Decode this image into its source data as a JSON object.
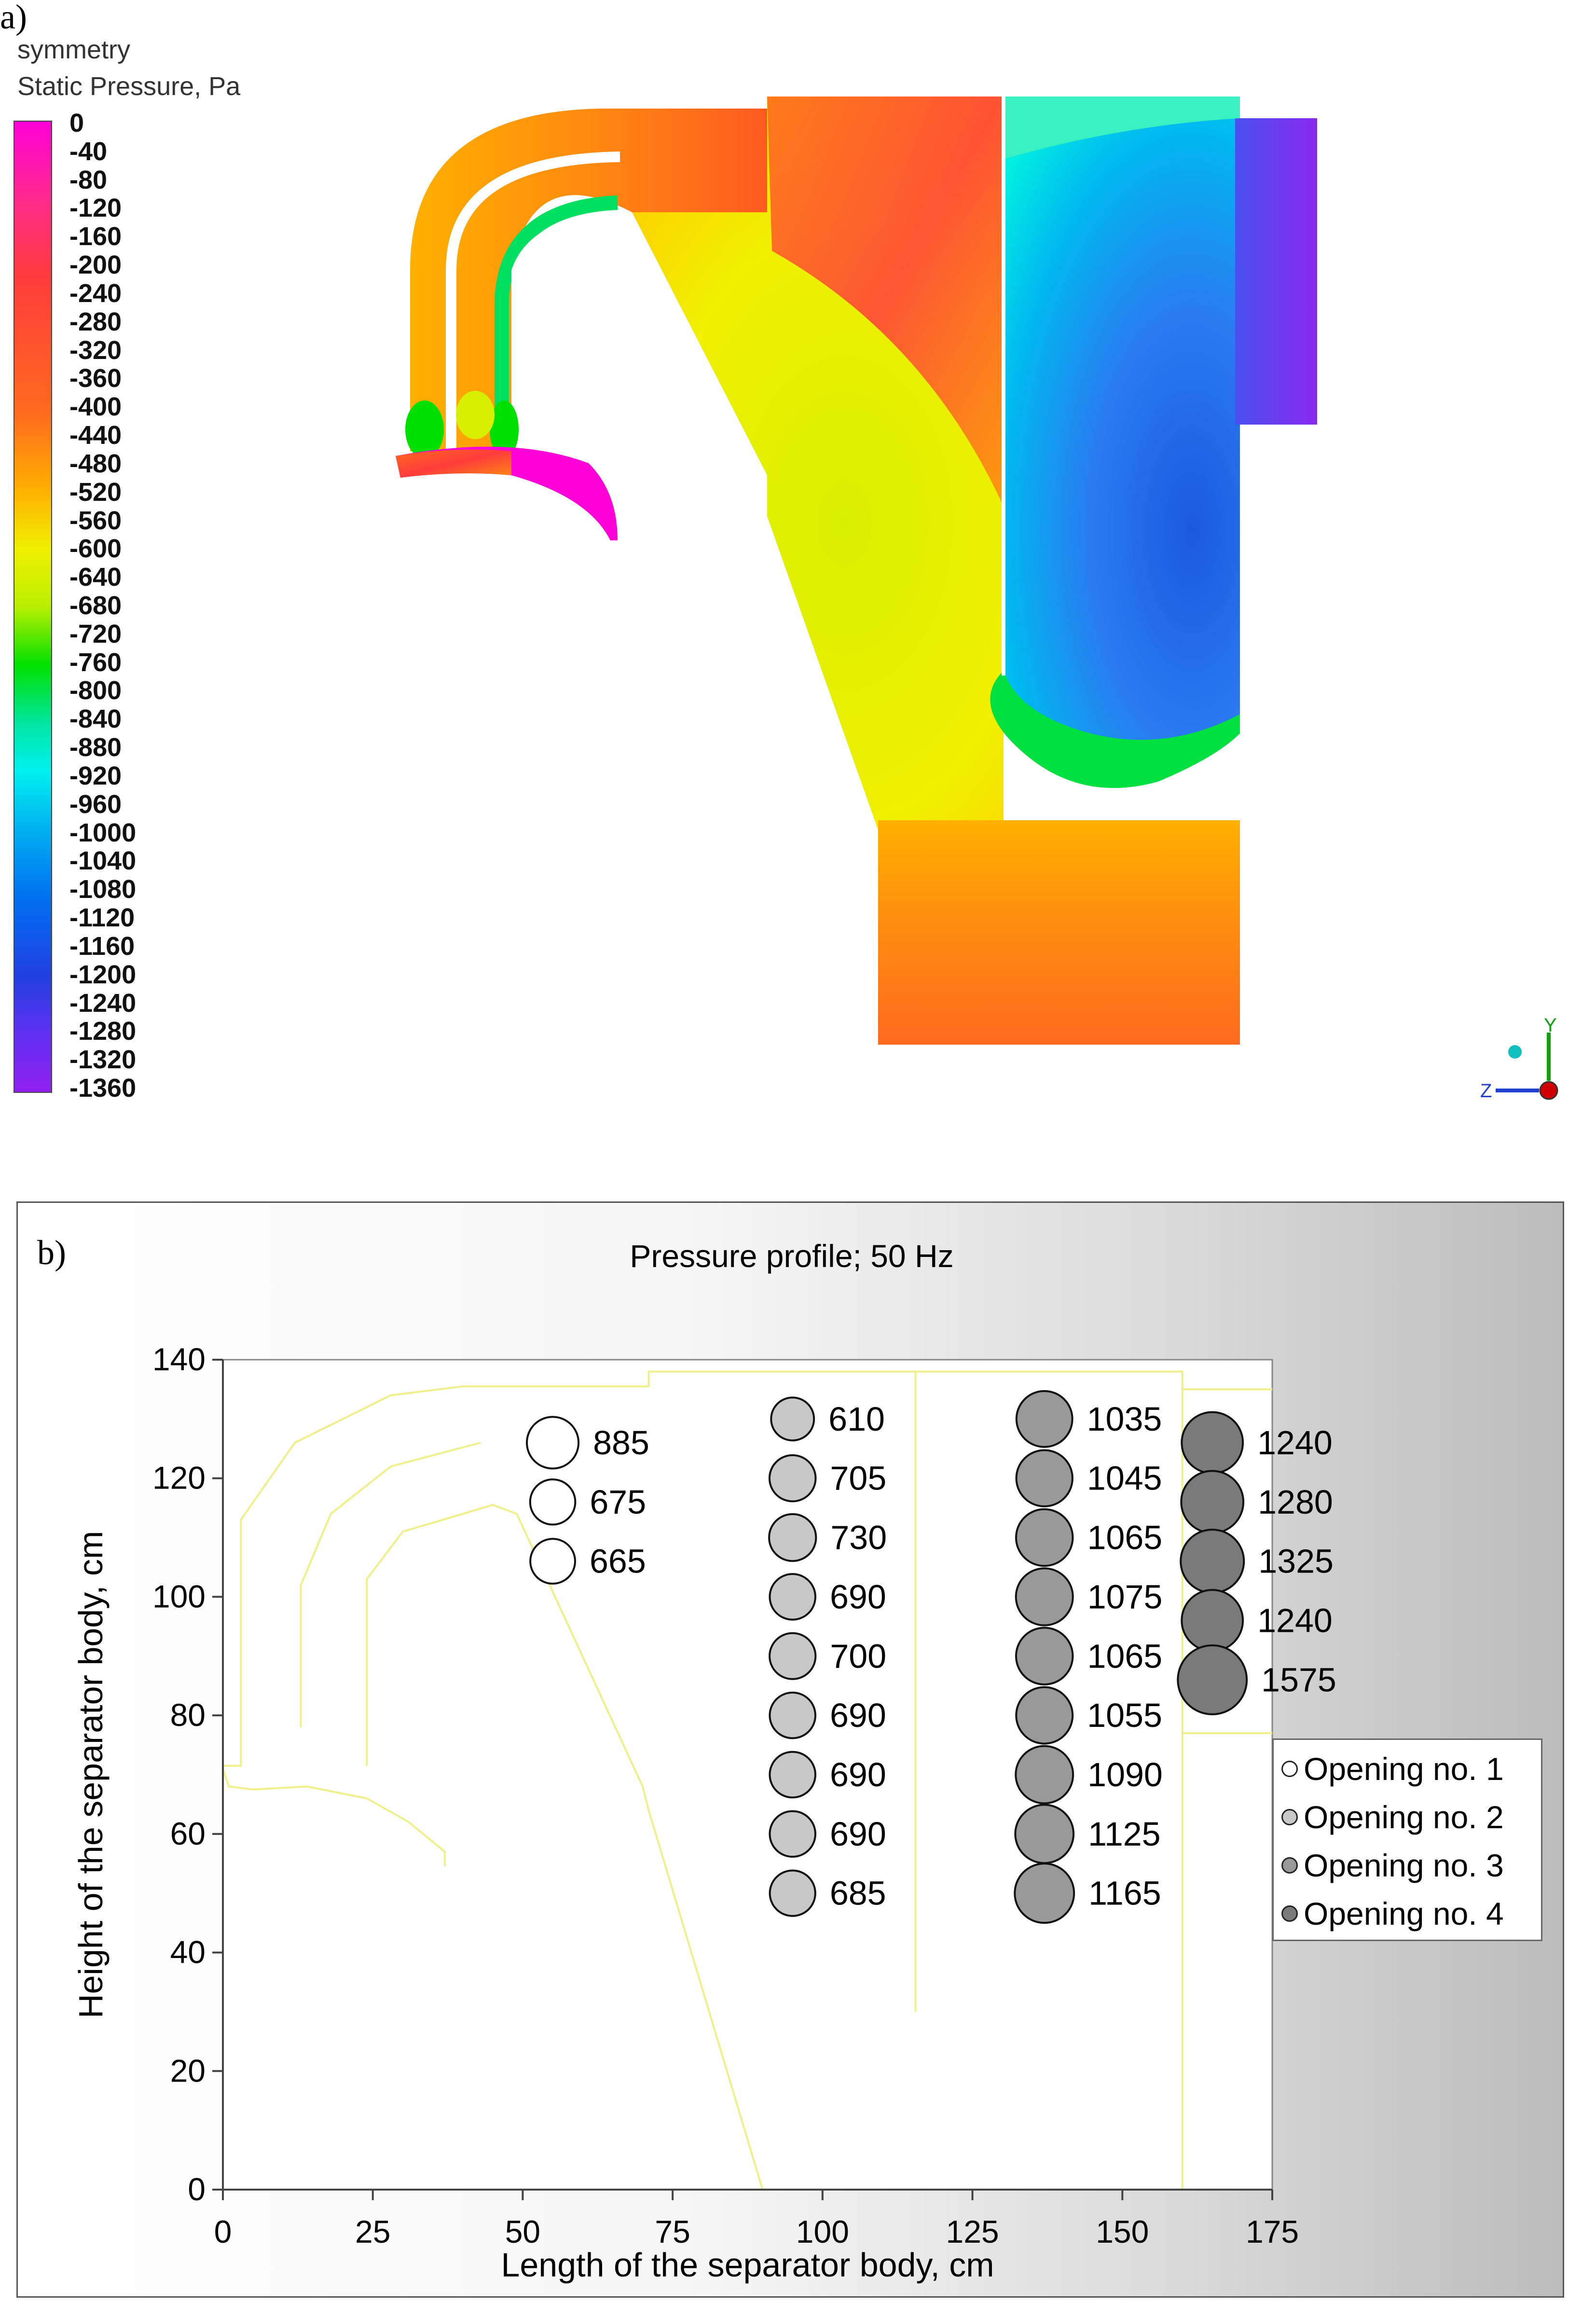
{
  "panel_a": {
    "label": "a)",
    "legend_title": [
      "symmetry",
      "Static Pressure, Pa"
    ],
    "colorbar_ticks": [
      "0",
      "-40",
      "-80",
      "-120",
      "-160",
      "-200",
      "-240",
      "-280",
      "-320",
      "-360",
      "-400",
      "-440",
      "-480",
      "-520",
      "-560",
      "-600",
      "-640",
      "-680",
      "-720",
      "-760",
      "-800",
      "-840",
      "-880",
      "-920",
      "-960",
      "-1000",
      "-1040",
      "-1080",
      "-1120",
      "-1160",
      "-1200",
      "-1240",
      "-1280",
      "-1320",
      "-1360"
    ],
    "triad_labels": {
      "y": "Y",
      "z": "Z"
    }
  },
  "chart_data": {
    "type": "scatter",
    "panel_label": "b)",
    "title": "Pressure profile; 50 Hz",
    "xlabel": "Length of the separator body, cm",
    "ylabel": "Height of the separator body, cm",
    "xlim": [
      0,
      175
    ],
    "ylim": [
      0,
      140
    ],
    "xticks": [
      0,
      25,
      50,
      75,
      100,
      125,
      150,
      175
    ],
    "yticks": [
      0,
      20,
      40,
      60,
      80,
      100,
      120,
      140
    ],
    "legend_position": "right",
    "series": [
      {
        "name": "Opening no. 1",
        "color": "#ffffff",
        "points": [
          {
            "x": 55,
            "y": 126,
            "value": 885
          },
          {
            "x": 55,
            "y": 116,
            "value": 675
          },
          {
            "x": 55,
            "y": 106,
            "value": 665
          }
        ]
      },
      {
        "name": "Opening no. 2",
        "color": "#c8c8c8",
        "points": [
          {
            "x": 95,
            "y": 130,
            "value": 610
          },
          {
            "x": 95,
            "y": 120,
            "value": 705
          },
          {
            "x": 95,
            "y": 110,
            "value": 730
          },
          {
            "x": 95,
            "y": 100,
            "value": 690
          },
          {
            "x": 95,
            "y": 90,
            "value": 700
          },
          {
            "x": 95,
            "y": 80,
            "value": 690
          },
          {
            "x": 95,
            "y": 70,
            "value": 690
          },
          {
            "x": 95,
            "y": 60,
            "value": 690
          },
          {
            "x": 95,
            "y": 50,
            "value": 685
          }
        ]
      },
      {
        "name": "Opening no. 3",
        "color": "#999999",
        "points": [
          {
            "x": 137,
            "y": 130,
            "value": 1035
          },
          {
            "x": 137,
            "y": 120,
            "value": 1045
          },
          {
            "x": 137,
            "y": 110,
            "value": 1065
          },
          {
            "x": 137,
            "y": 100,
            "value": 1075
          },
          {
            "x": 137,
            "y": 90,
            "value": 1065
          },
          {
            "x": 137,
            "y": 80,
            "value": 1055
          },
          {
            "x": 137,
            "y": 70,
            "value": 1090
          },
          {
            "x": 137,
            "y": 60,
            "value": 1125
          },
          {
            "x": 137,
            "y": 50,
            "value": 1165
          }
        ]
      },
      {
        "name": "Opening no. 4",
        "color": "#7a7a7a",
        "points": [
          {
            "x": 165,
            "y": 126,
            "value": 1240
          },
          {
            "x": 165,
            "y": 116,
            "value": 1280
          },
          {
            "x": 165,
            "y": 106,
            "value": 1325
          },
          {
            "x": 165,
            "y": 96,
            "value": 1240
          },
          {
            "x": 165,
            "y": 86,
            "value": 1575
          }
        ]
      }
    ]
  }
}
